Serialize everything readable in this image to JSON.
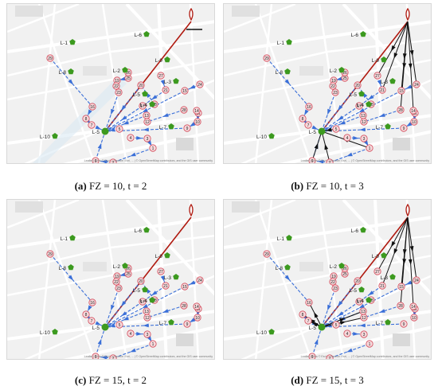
{
  "panels": [
    {
      "label": "(a)",
      "caption": "FZ = 10, t = 2"
    },
    {
      "label": "(b)",
      "caption": "FZ = 10, t = 3"
    },
    {
      "label": "(c)",
      "caption": "FZ = 15, t = 2"
    },
    {
      "label": "(d)",
      "caption": "FZ = 15, t = 3"
    }
  ],
  "map": {
    "attribution": "Leaflet | Tiles © Esri — Source: Esri, ... | © OpenStreetMap contributors, and the GIS user community",
    "sites": [
      "L-1",
      "L-2",
      "L-3",
      "L-4",
      "L-5",
      "L-6",
      "L-7",
      "L-8",
      "L-9",
      "L-10",
      "L-11"
    ],
    "demand_nodes": [
      "1",
      "2",
      "3",
      "4",
      "5",
      "6",
      "7",
      "8",
      "9",
      "10",
      "11",
      "12",
      "13",
      "14",
      "15",
      "16",
      "17",
      "18",
      "19",
      "20",
      "21",
      "22",
      "23",
      "24",
      "25",
      "26",
      "27",
      "28",
      "29"
    ]
  },
  "colors": {
    "route_blue": "#3a6fd8",
    "route_red": "#b01a10",
    "route_black": "#111111",
    "node_fill": "#f7d9dc",
    "node_stroke": "#d24a5a",
    "site_green": "#3c9a1f",
    "map_bg": "#f1f1f1",
    "road": "#ffffff"
  }
}
